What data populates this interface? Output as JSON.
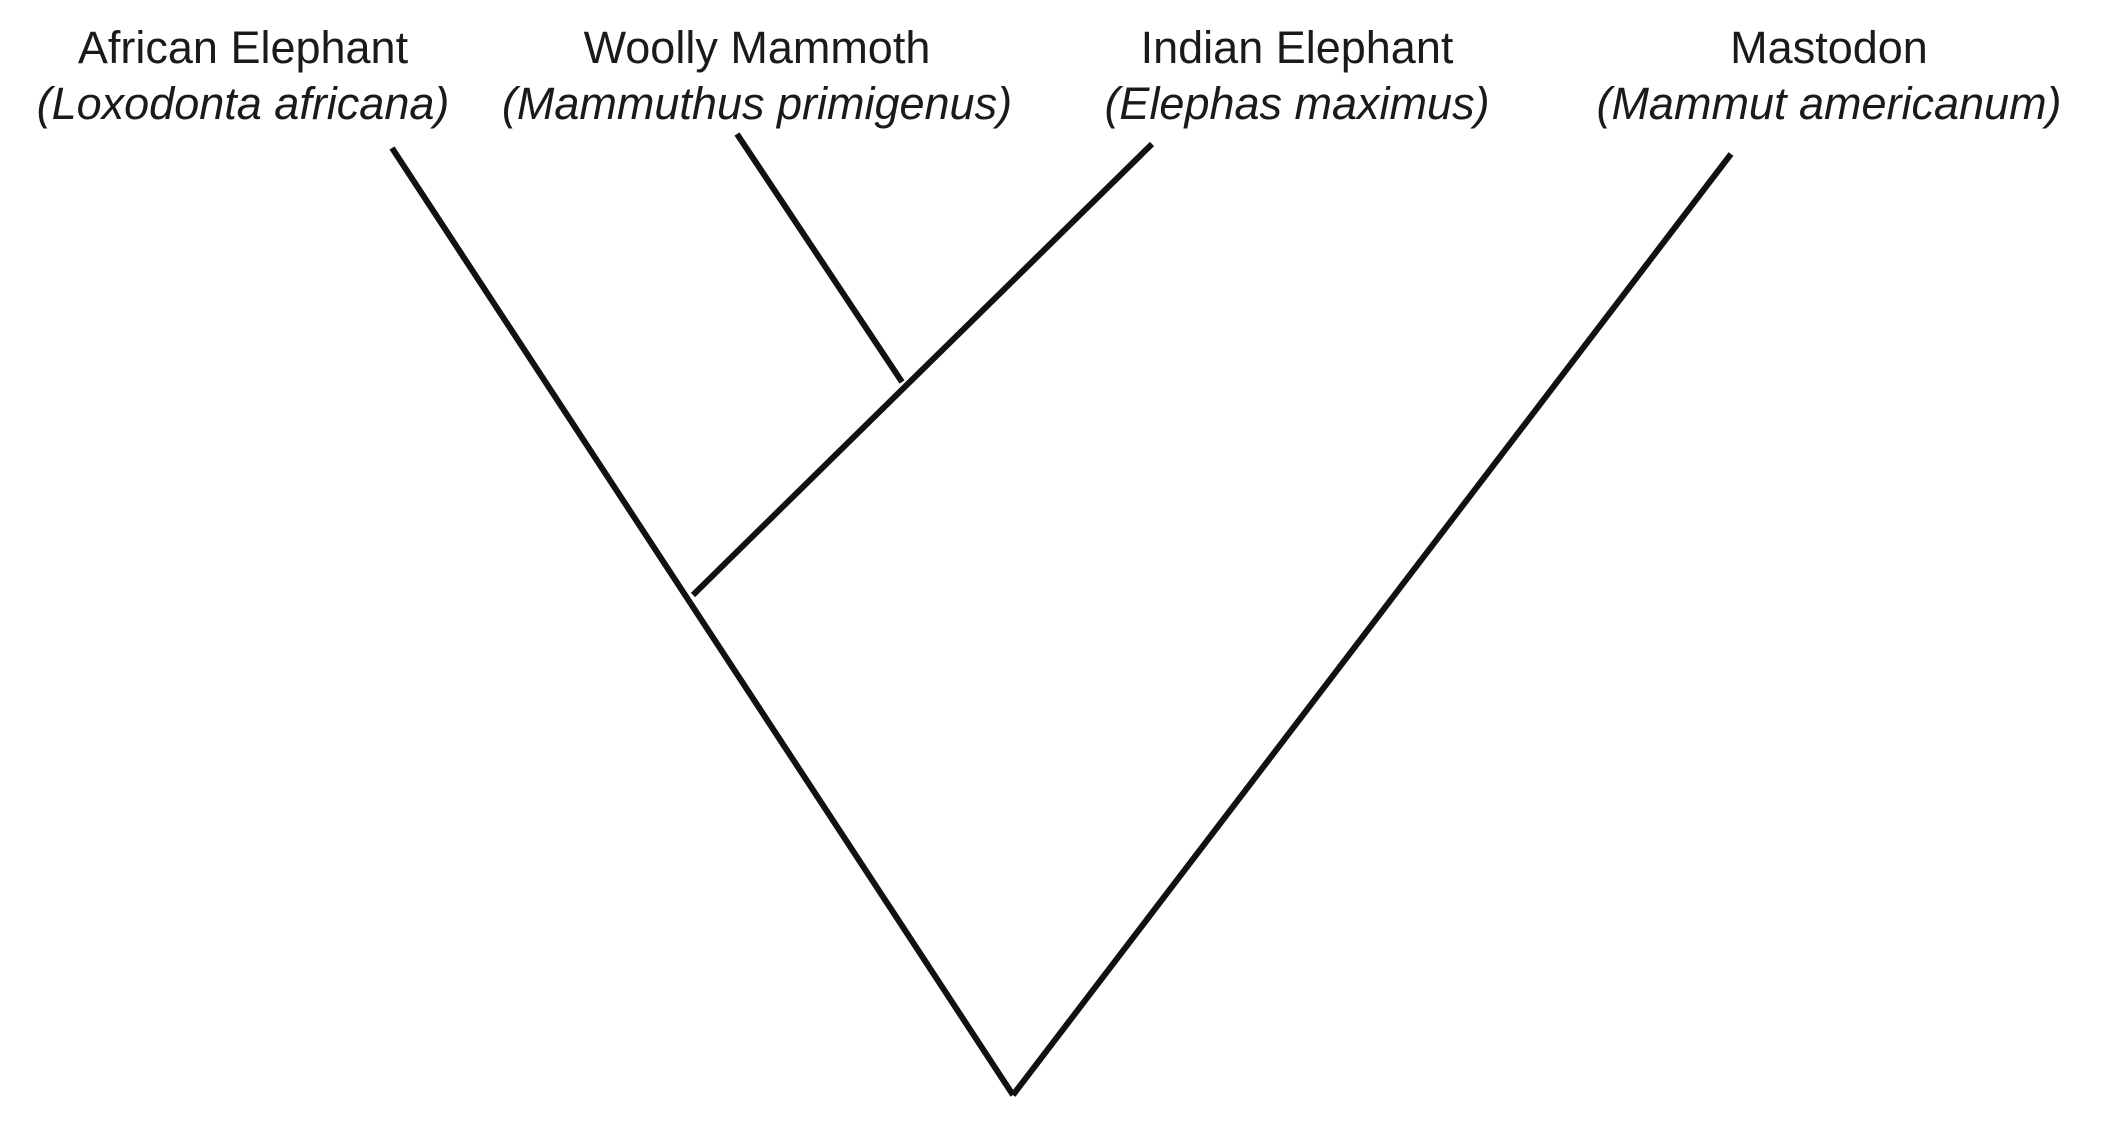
{
  "taxa": [
    {
      "common": "African Elephant",
      "scientific": "(Loxodonta africana)"
    },
    {
      "common": "Woolly Mammoth",
      "scientific": "(Mammuthus primigenus)"
    },
    {
      "common": "Indian Elephant",
      "scientific": "(Elephas maximus)"
    },
    {
      "common": "Mastodon",
      "scientific": "(Mammut americanum)"
    }
  ],
  "colors": {
    "line": "#111111",
    "text": "#1a1a1a",
    "background": "#ffffff"
  }
}
